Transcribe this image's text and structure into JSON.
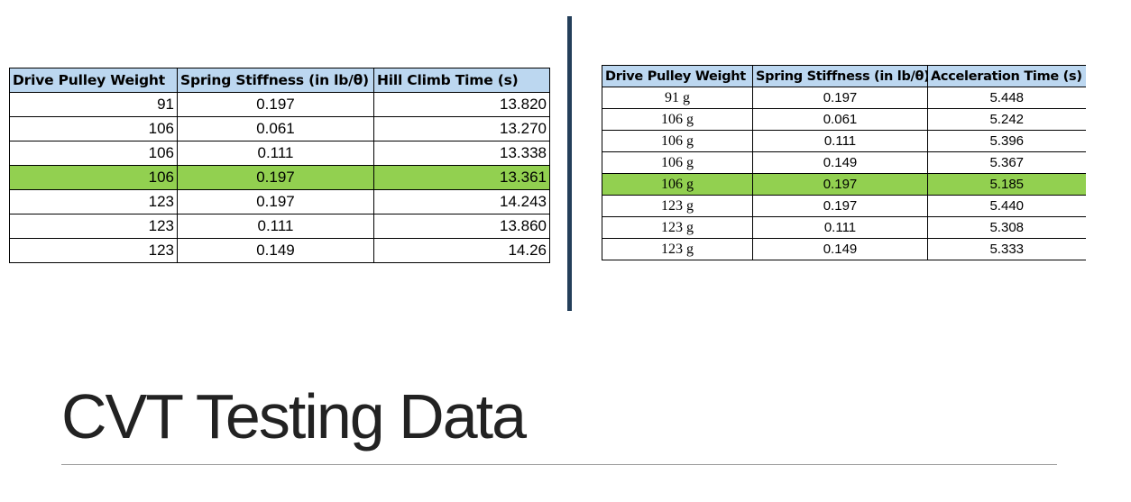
{
  "title": "CVT Testing Data",
  "colors": {
    "header_fill": "#bcd7f0",
    "highlight_fill": "#92d050",
    "divider": "#243f5a"
  },
  "hill_climb_table": {
    "headers": [
      "Drive Pulley Weight",
      "Spring Stiffness (in lb/θ)",
      "Hill Climb Time (s)"
    ],
    "highlighted_row": 3,
    "rows": [
      [
        "91",
        "0.197",
        "13.820"
      ],
      [
        "106",
        "0.061",
        "13.270"
      ],
      [
        "106",
        "0.111",
        "13.338"
      ],
      [
        "106",
        "0.197",
        "13.361"
      ],
      [
        "123",
        "0.197",
        "14.243"
      ],
      [
        "123",
        "0.111",
        "13.860"
      ],
      [
        "123",
        "0.149",
        "14.26"
      ]
    ]
  },
  "acceleration_table": {
    "headers": [
      "Drive Pulley Weight",
      "Spring Stiffness (in lb/θ)",
      "Acceleration Time (s)"
    ],
    "highlighted_row": 4,
    "rows": [
      [
        "91 g",
        "0.197",
        "5.448"
      ],
      [
        "106 g",
        "0.061",
        "5.242"
      ],
      [
        "106 g",
        "0.111",
        "5.396"
      ],
      [
        "106 g",
        "0.149",
        "5.367"
      ],
      [
        "106 g",
        "0.197",
        "5.185"
      ],
      [
        "123 g",
        "0.197",
        "5.440"
      ],
      [
        "123 g",
        "0.111",
        "5.308"
      ],
      [
        "123 g",
        "0.149",
        "5.333"
      ]
    ]
  }
}
